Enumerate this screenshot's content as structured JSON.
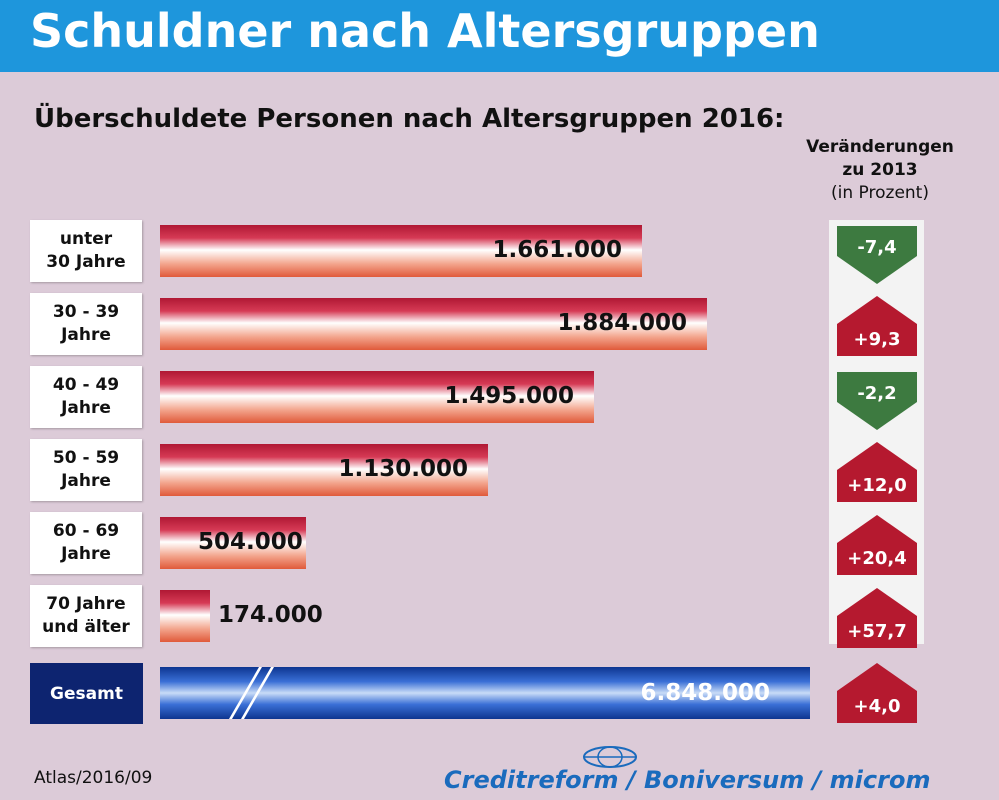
{
  "header": {
    "title": "Schuldner nach Altersgruppen"
  },
  "subtitle": "Überschuldete Personen nach Altersgruppen 2016:",
  "change_header": {
    "line1": "Veränderungen",
    "line2": "zu 2013",
    "line3": "(in Prozent)"
  },
  "chart_data": {
    "type": "bar",
    "orientation": "horizontal",
    "categories": [
      "unter 30 Jahre",
      "30 - 39 Jahre",
      "40 - 49 Jahre",
      "50 - 59 Jahre",
      "60 - 69 Jahre",
      "70 Jahre und älter"
    ],
    "values": [
      1661000,
      1884000,
      1495000,
      1130000,
      504000,
      174000
    ],
    "value_labels": [
      "1.661.000",
      "1.884.000",
      "1.495.000",
      "1.130.000",
      "504.000",
      "174.000"
    ],
    "changes": [
      -7.4,
      9.3,
      -2.2,
      12.0,
      20.4,
      57.7
    ],
    "change_labels": [
      "-7,4",
      "+9,3",
      "-2,2",
      "+12,0",
      "+20,4",
      "+57,7"
    ],
    "total": {
      "label": "Gesamt",
      "value": 6848000,
      "value_label": "6.848.000",
      "change": 4.0,
      "change_label": "+4,0"
    },
    "title": "Überschuldete Personen nach Altersgruppen 2016:",
    "colors": {
      "bar": "#c4203d",
      "total_bar": "#1f4fb8",
      "increase": "#b5192f",
      "decrease": "#3d7a40"
    }
  },
  "category_box_labels": [
    "unter\n30 Jahre",
    "30 - 39\nJahre",
    "40 - 49\nJahre",
    "50 - 59\nJahre",
    "60 - 69\nJahre",
    "70 Jahre\nund älter"
  ],
  "footer": {
    "source": "Atlas/2016/09",
    "logo": "Creditreform / Boniversum / microm"
  }
}
